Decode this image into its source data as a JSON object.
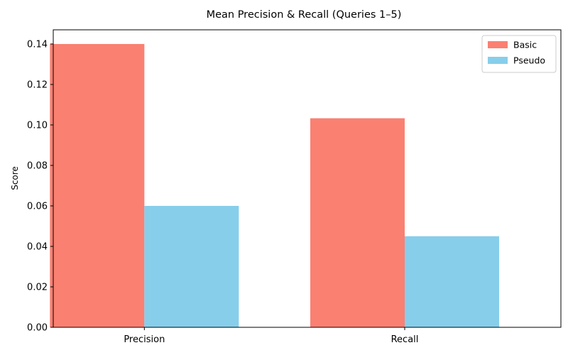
{
  "chart_data": {
    "type": "bar",
    "title": "Mean Precision & Recall (Queries 1–5)",
    "xlabel": "",
    "ylabel": "Score",
    "categories": [
      "Precision",
      "Recall"
    ],
    "series": [
      {
        "name": "Basic",
        "values": [
          0.14,
          0.1033
        ],
        "color": "#fa8072"
      },
      {
        "name": "Pseudo",
        "values": [
          0.06,
          0.045
        ],
        "color": "#87ceeb"
      }
    ],
    "ylim": [
      0,
      0.147
    ],
    "yticks": [
      "0.00",
      "0.02",
      "0.04",
      "0.06",
      "0.08",
      "0.10",
      "0.12",
      "0.14"
    ],
    "ytick_values": [
      0,
      0.02,
      0.04,
      0.06,
      0.08,
      0.1,
      0.12,
      0.14
    ],
    "grid": false,
    "legend_position": "top-right"
  }
}
